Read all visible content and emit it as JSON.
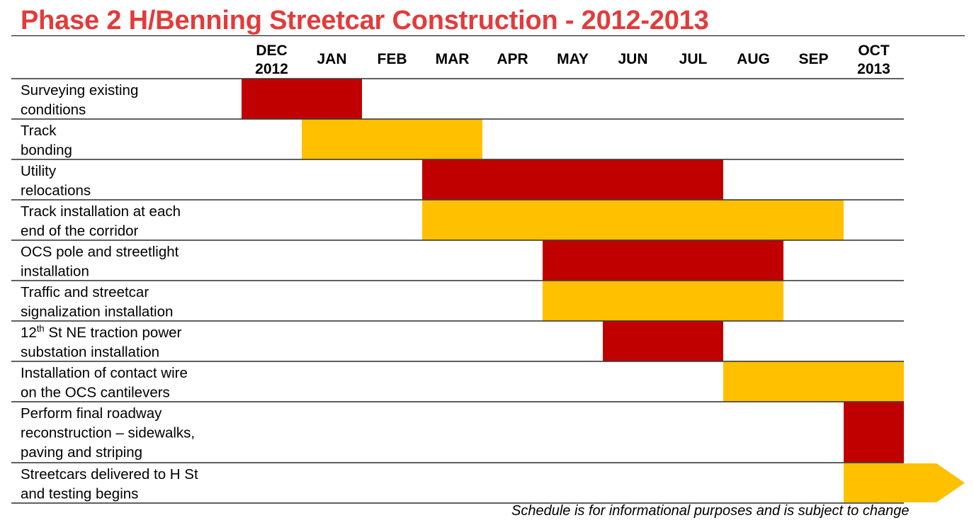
{
  "chart_data": {
    "type": "gantt",
    "title": "Phase 2 H/Benning Streetcar Construction - 2012-2013",
    "months": [
      {
        "label": [
          "DEC",
          "2012"
        ]
      },
      {
        "label": [
          "JAN"
        ]
      },
      {
        "label": [
          "FEB"
        ]
      },
      {
        "label": [
          "MAR"
        ]
      },
      {
        "label": [
          "APR"
        ]
      },
      {
        "label": [
          "MAY"
        ]
      },
      {
        "label": [
          "JUN"
        ]
      },
      {
        "label": [
          "JUL"
        ]
      },
      {
        "label": [
          "AUG"
        ]
      },
      {
        "label": [
          "SEP"
        ]
      },
      {
        "label": [
          "OCT",
          "2013"
        ]
      }
    ],
    "tasks": [
      {
        "lines": [
          "Surveying existing",
          "conditions"
        ],
        "start_month": 0,
        "end_month": 2,
        "color": "#c00000"
      },
      {
        "lines": [
          "Track",
          "bonding"
        ],
        "start_month": 1,
        "end_month": 4,
        "color": "#ffc000"
      },
      {
        "lines": [
          "Utility",
          "relocations"
        ],
        "start_month": 3,
        "end_month": 8,
        "color": "#c00000"
      },
      {
        "lines": [
          "Track installation at each",
          "end of the corridor"
        ],
        "start_month": 3,
        "end_month": 10,
        "color": "#ffc000"
      },
      {
        "lines": [
          "OCS pole and streetlight",
          "installation"
        ],
        "start_month": 5,
        "end_month": 9,
        "color": "#c00000"
      },
      {
        "lines": [
          "Traffic and streetcar",
          "signalization installation"
        ],
        "start_month": 5,
        "end_month": 9,
        "color": "#ffc000"
      },
      {
        "lines": [
          "12th St NE traction power",
          "substation installation"
        ],
        "superscript": {
          "line": 0,
          "base": "12",
          "sup": "th",
          "rest": " St NE traction power"
        },
        "start_month": 6,
        "end_month": 8,
        "color": "#c00000"
      },
      {
        "lines": [
          "Installation of contact wire",
          "on the OCS cantilevers"
        ],
        "start_month": 8,
        "end_month": 11,
        "color": "#ffc000"
      },
      {
        "lines": [
          "Perform final roadway",
          "reconstruction – sidewalks,",
          "paving and striping"
        ],
        "start_month": 10,
        "end_month": 11,
        "color": "#c00000"
      },
      {
        "lines": [
          "Streetcars delivered to H St",
          "and testing begins"
        ],
        "start_month": 10,
        "end_month": 11,
        "color": "#ffc000",
        "continues": true
      }
    ],
    "colors": {
      "red": "#c00000",
      "gold": "#ffc000",
      "title": "#e23b3b"
    }
  },
  "footnote": "Schedule is for informational purposes and is subject to change"
}
